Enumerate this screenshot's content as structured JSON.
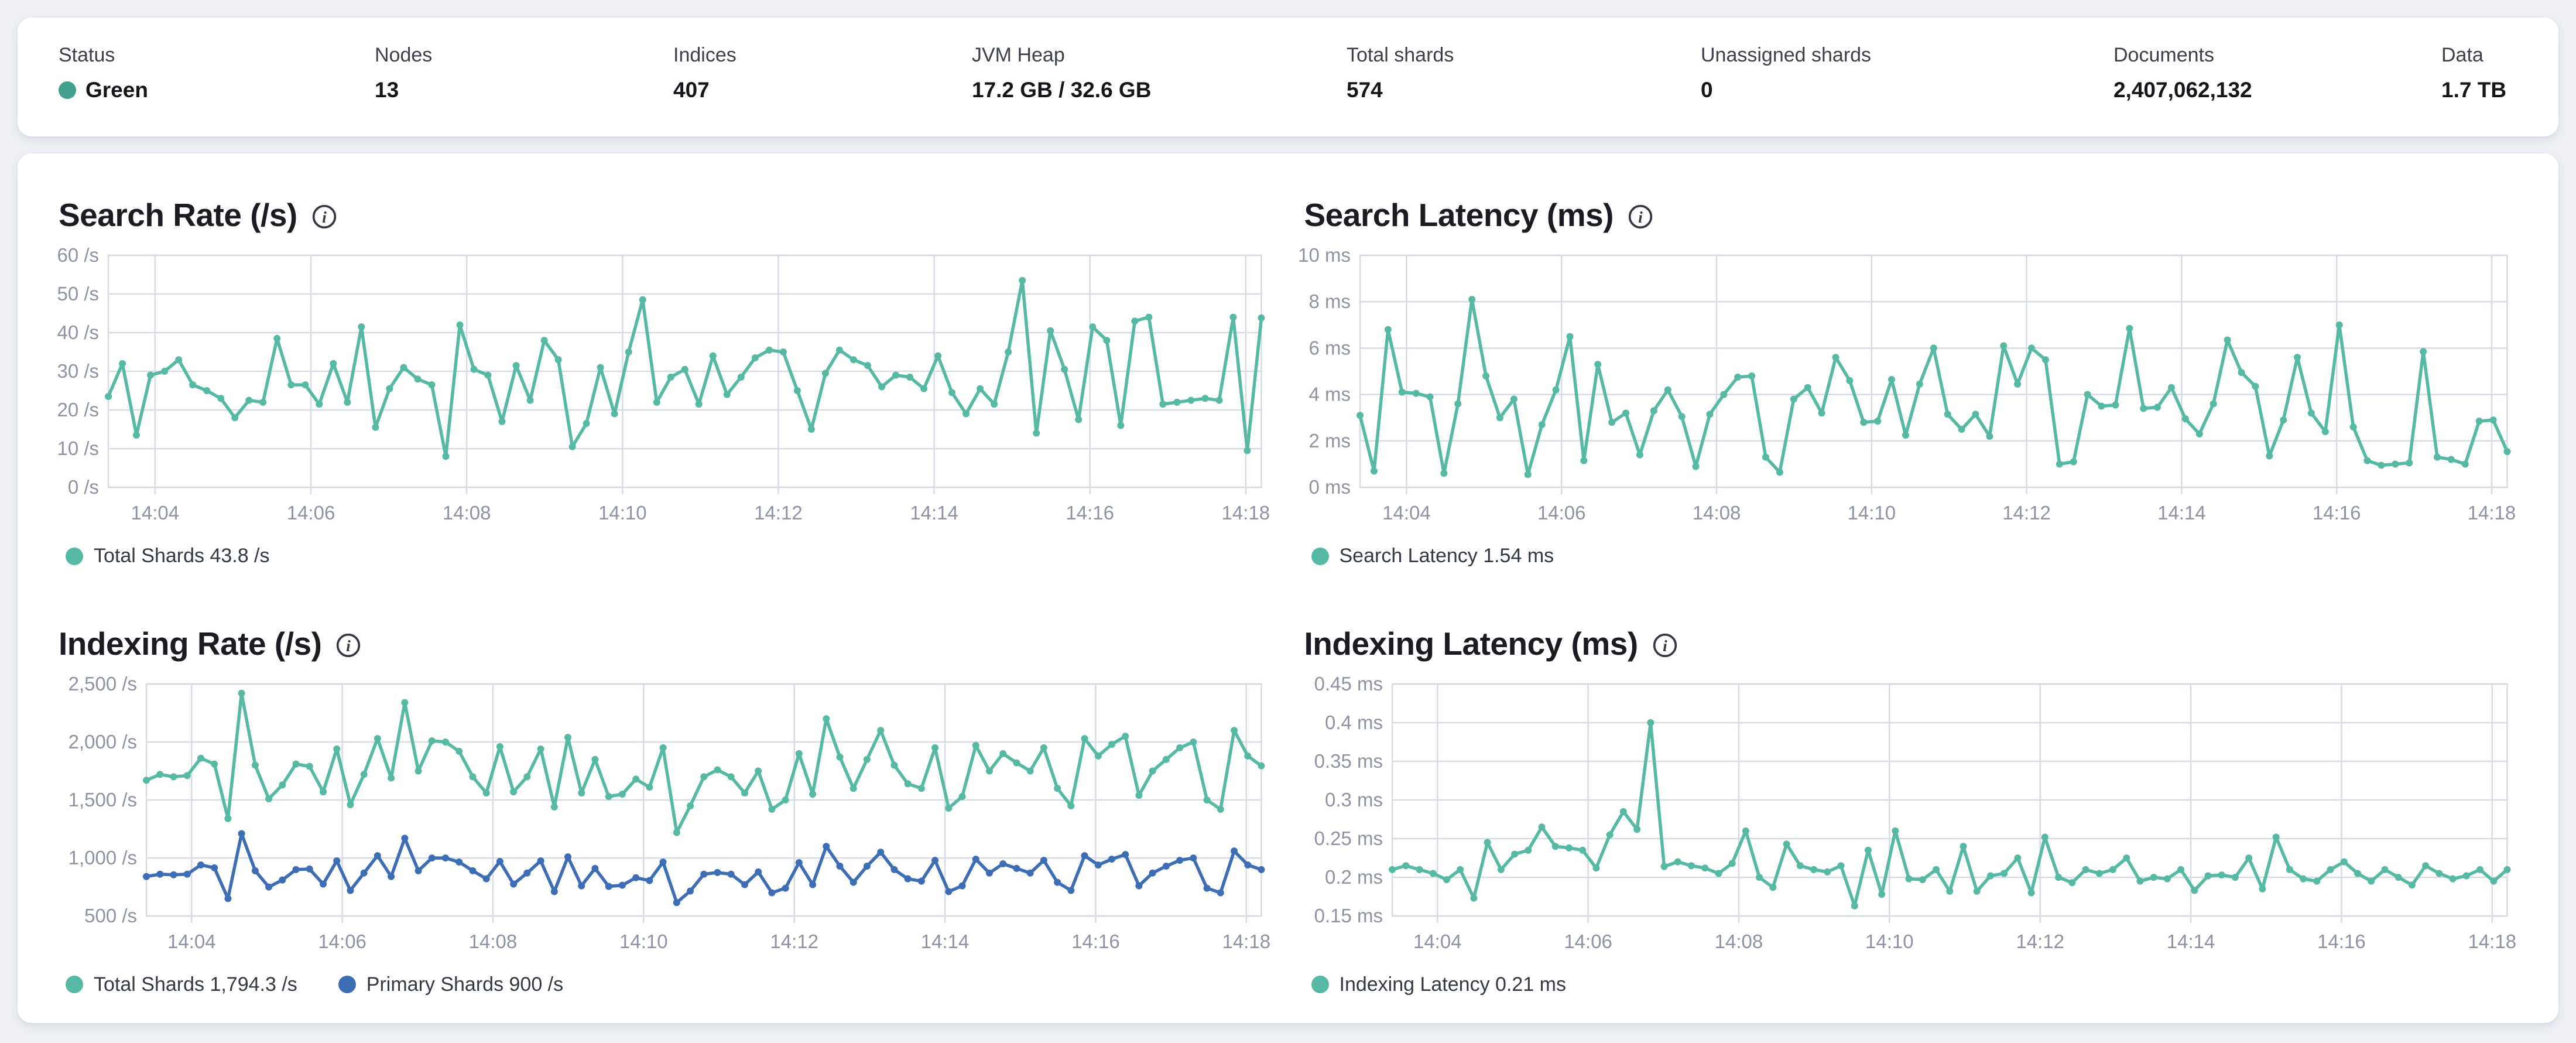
{
  "status_bar": {
    "items": [
      {
        "label": "Status",
        "value": "Green",
        "dot_color": "#43a08e"
      },
      {
        "label": "Nodes",
        "value": "13"
      },
      {
        "label": "Indices",
        "value": "407"
      },
      {
        "label": "JVM Heap",
        "value": "17.2 GB / 32.6 GB"
      },
      {
        "label": "Total shards",
        "value": "574"
      },
      {
        "label": "Unassigned shards",
        "value": "0"
      },
      {
        "label": "Documents",
        "value": "2,407,062,132"
      },
      {
        "label": "Data",
        "value": "1.7 TB"
      }
    ]
  },
  "colors": {
    "teal": "#55b9a3",
    "blue": "#3d6db5",
    "grid": "#d6dbe4",
    "tick_label": "#8d93a0"
  },
  "chart_data": [
    {
      "type": "line",
      "title": "Search Rate (/s)",
      "ylabel": "/s",
      "ylim": [
        0,
        60
      ],
      "yticks": [
        {
          "v": 0,
          "label": "0 /s"
        },
        {
          "v": 10,
          "label": "10 /s"
        },
        {
          "v": 20,
          "label": "20 /s"
        },
        {
          "v": 30,
          "label": "30 /s"
        },
        {
          "v": 40,
          "label": "40 /s"
        },
        {
          "v": 50,
          "label": "50 /s"
        },
        {
          "v": 60,
          "label": "60 /s"
        }
      ],
      "x_start_min": 843.4,
      "x_end_min": 858.2,
      "xticks": [
        {
          "min": 844,
          "label": "14:04"
        },
        {
          "min": 846,
          "label": "14:06"
        },
        {
          "min": 848,
          "label": "14:08"
        },
        {
          "min": 850,
          "label": "14:10"
        },
        {
          "min": 852,
          "label": "14:12"
        },
        {
          "min": 854,
          "label": "14:14"
        },
        {
          "min": 856,
          "label": "14:16"
        },
        {
          "min": 858,
          "label": "14:18"
        }
      ],
      "legend": [
        {
          "label": "Total Shards 43.8 /s",
          "color": "#55b9a3"
        }
      ],
      "series": [
        {
          "name": "Total Shards",
          "color": "#55b9a3",
          "values": [
            23.5,
            32,
            13.5,
            29,
            30,
            33,
            26.5,
            25,
            23,
            18,
            22.5,
            22,
            38.5,
            26.5,
            26.5,
            21.5,
            32,
            22,
            41.5,
            15.5,
            25.5,
            31,
            28,
            26.5,
            8,
            42,
            30.5,
            29,
            17,
            31.5,
            22.5,
            38,
            33,
            10.5,
            16.5,
            31,
            19,
            35,
            48.5,
            22,
            28.5,
            30.5,
            21.5,
            34,
            24,
            28.5,
            33.5,
            35.5,
            35,
            25,
            15,
            29.5,
            35.5,
            33,
            31.5,
            26,
            29,
            28.5,
            25.5,
            34,
            24.5,
            19,
            25.5,
            21.5,
            35,
            53.5,
            14,
            40.5,
            30.5,
            17.5,
            41.5,
            38,
            16,
            43,
            44,
            21.5,
            22,
            22.5,
            23,
            22.5,
            44,
            9.5,
            43.8
          ]
        }
      ]
    },
    {
      "type": "line",
      "title": "Search Latency (ms)",
      "ylabel": "ms",
      "ylim": [
        0,
        10
      ],
      "yticks": [
        {
          "v": 0,
          "label": "0 ms"
        },
        {
          "v": 2,
          "label": "2 ms"
        },
        {
          "v": 4,
          "label": "4 ms"
        },
        {
          "v": 6,
          "label": "6 ms"
        },
        {
          "v": 8,
          "label": "8 ms"
        },
        {
          "v": 10,
          "label": "10 ms"
        }
      ],
      "x_start_min": 843.4,
      "x_end_min": 858.2,
      "xticks": [
        {
          "min": 844,
          "label": "14:04"
        },
        {
          "min": 846,
          "label": "14:06"
        },
        {
          "min": 848,
          "label": "14:08"
        },
        {
          "min": 850,
          "label": "14:10"
        },
        {
          "min": 852,
          "label": "14:12"
        },
        {
          "min": 854,
          "label": "14:14"
        },
        {
          "min": 856,
          "label": "14:16"
        },
        {
          "min": 858,
          "label": "14:18"
        }
      ],
      "legend": [
        {
          "label": "Search Latency 1.54 ms",
          "color": "#55b9a3"
        }
      ],
      "series": [
        {
          "name": "Search Latency",
          "color": "#55b9a3",
          "values": [
            3.1,
            0.7,
            6.8,
            4.1,
            4.05,
            3.9,
            0.6,
            3.6,
            8.1,
            4.8,
            3.0,
            3.8,
            0.55,
            2.7,
            4.2,
            6.5,
            1.15,
            5.3,
            2.8,
            3.2,
            1.4,
            3.3,
            4.2,
            3.05,
            0.9,
            3.15,
            4.0,
            4.75,
            4.8,
            1.3,
            0.65,
            3.8,
            4.3,
            3.2,
            5.6,
            4.6,
            2.8,
            2.85,
            4.65,
            2.25,
            4.45,
            6.0,
            3.15,
            2.5,
            3.15,
            2.2,
            6.1,
            4.45,
            6.0,
            5.5,
            1.0,
            1.1,
            4.0,
            3.5,
            3.55,
            6.85,
            3.4,
            3.45,
            4.3,
            2.95,
            2.3,
            3.6,
            6.35,
            4.95,
            4.35,
            1.35,
            2.9,
            5.6,
            3.2,
            2.4,
            7.0,
            2.6,
            1.15,
            0.95,
            1.0,
            1.05,
            5.85,
            1.3,
            1.2,
            1.0,
            2.85,
            2.9,
            1.54
          ]
        }
      ]
    },
    {
      "type": "line",
      "title": "Indexing Rate (/s)",
      "ylabel": "/s",
      "ylim": [
        500,
        2500
      ],
      "yticks": [
        {
          "v": 500,
          "label": "500 /s"
        },
        {
          "v": 1000,
          "label": "1,000 /s"
        },
        {
          "v": 1500,
          "label": "1,500 /s"
        },
        {
          "v": 2000,
          "label": "2,000 /s"
        },
        {
          "v": 2500,
          "label": "2,500 /s"
        }
      ],
      "x_start_min": 843.4,
      "x_end_min": 858.2,
      "xticks": [
        {
          "min": 844,
          "label": "14:04"
        },
        {
          "min": 846,
          "label": "14:06"
        },
        {
          "min": 848,
          "label": "14:08"
        },
        {
          "min": 850,
          "label": "14:10"
        },
        {
          "min": 852,
          "label": "14:12"
        },
        {
          "min": 854,
          "label": "14:14"
        },
        {
          "min": 856,
          "label": "14:16"
        },
        {
          "min": 858,
          "label": "14:18"
        }
      ],
      "legend": [
        {
          "label": "Total Shards 1,794.3 /s",
          "color": "#55b9a3"
        },
        {
          "label": "Primary Shards 900 /s",
          "color": "#3d6db5"
        }
      ],
      "series": [
        {
          "name": "Total Shards",
          "color": "#55b9a3",
          "values": [
            1670,
            1720,
            1700,
            1710,
            1860,
            1810,
            1340,
            2420,
            1800,
            1510,
            1630,
            1810,
            1790,
            1570,
            1940,
            1460,
            1720,
            2030,
            1690,
            2340,
            1750,
            2010,
            2000,
            1920,
            1700,
            1560,
            1960,
            1570,
            1700,
            1940,
            1440,
            2040,
            1560,
            1850,
            1530,
            1550,
            1680,
            1610,
            1950,
            1220,
            1450,
            1700,
            1760,
            1700,
            1560,
            1750,
            1420,
            1500,
            1900,
            1550,
            2200,
            1870,
            1600,
            1850,
            2100,
            1800,
            1640,
            1600,
            1950,
            1430,
            1530,
            1970,
            1750,
            1900,
            1820,
            1750,
            1950,
            1600,
            1450,
            2030,
            1880,
            1980,
            2050,
            1540,
            1750,
            1850,
            1950,
            2000,
            1500,
            1420,
            2100,
            1880,
            1794.3
          ]
        },
        {
          "name": "Primary Shards",
          "color": "#3d6db5",
          "values": [
            840,
            860,
            855,
            860,
            940,
            915,
            650,
            1210,
            890,
            750,
            810,
            900,
            905,
            775,
            975,
            720,
            870,
            1020,
            840,
            1170,
            890,
            1000,
            1000,
            965,
            890,
            820,
            970,
            775,
            870,
            975,
            710,
            1010,
            760,
            910,
            755,
            765,
            830,
            805,
            965,
            615,
            715,
            860,
            875,
            860,
            770,
            880,
            700,
            740,
            960,
            770,
            1100,
            930,
            790,
            930,
            1050,
            900,
            820,
            800,
            980,
            710,
            760,
            990,
            870,
            950,
            910,
            870,
            980,
            790,
            720,
            1020,
            940,
            990,
            1030,
            760,
            870,
            930,
            980,
            1000,
            740,
            700,
            1060,
            940,
            900
          ]
        }
      ]
    },
    {
      "type": "line",
      "title": "Indexing Latency (ms)",
      "ylabel": "ms",
      "ylim": [
        0.15,
        0.45
      ],
      "yticks": [
        {
          "v": 0.15,
          "label": "0.15 ms"
        },
        {
          "v": 0.2,
          "label": "0.2 ms"
        },
        {
          "v": 0.25,
          "label": "0.25 ms"
        },
        {
          "v": 0.3,
          "label": "0.3 ms"
        },
        {
          "v": 0.35,
          "label": "0.35 ms"
        },
        {
          "v": 0.4,
          "label": "0.4 ms"
        },
        {
          "v": 0.45,
          "label": "0.45 ms"
        }
      ],
      "x_start_min": 843.4,
      "x_end_min": 858.2,
      "xticks": [
        {
          "min": 844,
          "label": "14:04"
        },
        {
          "min": 846,
          "label": "14:06"
        },
        {
          "min": 848,
          "label": "14:08"
        },
        {
          "min": 850,
          "label": "14:10"
        },
        {
          "min": 852,
          "label": "14:12"
        },
        {
          "min": 854,
          "label": "14:14"
        },
        {
          "min": 856,
          "label": "14:16"
        },
        {
          "min": 858,
          "label": "14:18"
        }
      ],
      "legend": [
        {
          "label": "Indexing Latency 0.21 ms",
          "color": "#55b9a3"
        }
      ],
      "series": [
        {
          "name": "Indexing Latency",
          "color": "#55b9a3",
          "values": [
            0.21,
            0.215,
            0.21,
            0.205,
            0.197,
            0.21,
            0.173,
            0.245,
            0.21,
            0.23,
            0.235,
            0.265,
            0.24,
            0.238,
            0.235,
            0.212,
            0.255,
            0.285,
            0.262,
            0.4,
            0.214,
            0.22,
            0.215,
            0.212,
            0.205,
            0.218,
            0.26,
            0.2,
            0.187,
            0.243,
            0.215,
            0.21,
            0.207,
            0.215,
            0.163,
            0.235,
            0.178,
            0.26,
            0.198,
            0.197,
            0.21,
            0.182,
            0.24,
            0.182,
            0.202,
            0.205,
            0.225,
            0.18,
            0.252,
            0.2,
            0.193,
            0.21,
            0.205,
            0.21,
            0.225,
            0.195,
            0.2,
            0.198,
            0.21,
            0.183,
            0.202,
            0.203,
            0.2,
            0.225,
            0.185,
            0.252,
            0.21,
            0.198,
            0.195,
            0.21,
            0.22,
            0.205,
            0.195,
            0.21,
            0.2,
            0.19,
            0.215,
            0.205,
            0.198,
            0.202,
            0.21,
            0.195,
            0.21
          ]
        }
      ]
    }
  ]
}
